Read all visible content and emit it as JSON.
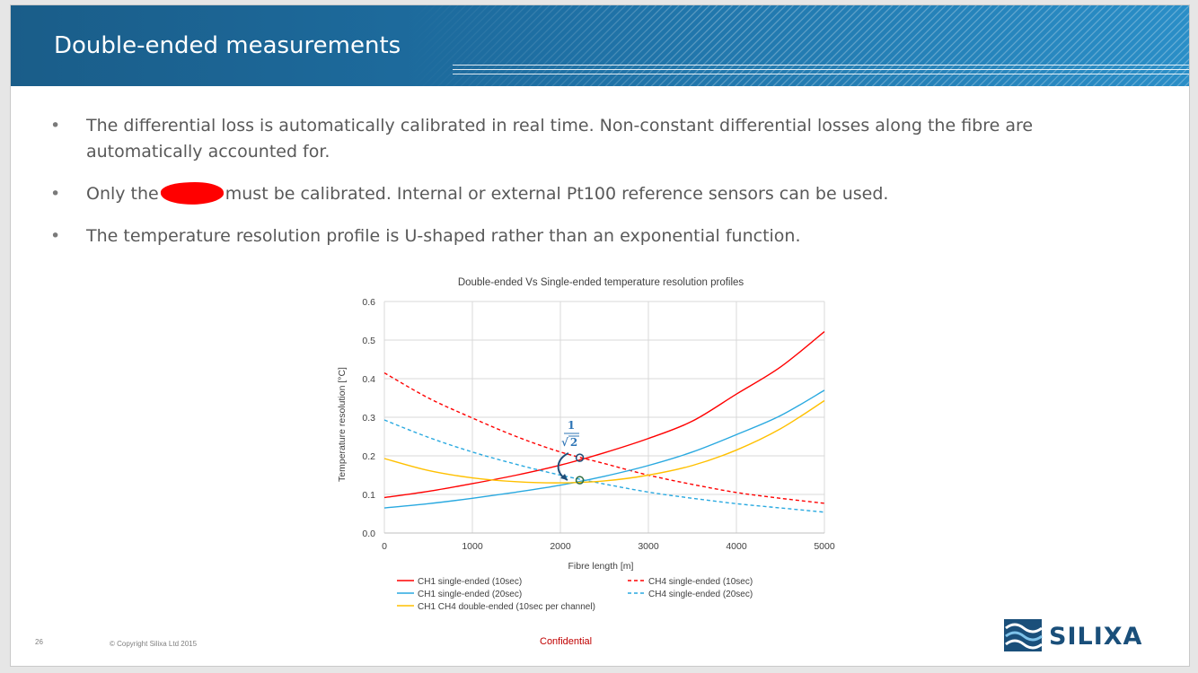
{
  "slide": {
    "title": "Double-ended measurements",
    "bullets": [
      {
        "text": "The differential loss is automatically calibrated in real time. Non-constant differential losses along the fibre are automatically accounted for."
      },
      {
        "before": "Only the",
        "after": "must be calibrated. Internal or external Pt100 reference sensors can be used."
      },
      {
        "text": "The temperature resolution profile is U-shaped rather than an exponential function."
      }
    ],
    "bullet_symbol": "•"
  },
  "footer": {
    "page_number": "26",
    "copyright": "© Copyright Silixa Ltd  2015",
    "confidential": "Confidential",
    "logo_text": "SILIXA"
  },
  "chart_data": {
    "type": "line",
    "title": "Double-ended Vs Single-ended temperature resolution profiles",
    "xlabel": "Fibre length [m]",
    "ylabel": "Temperature resolution [°C]",
    "xlim": [
      0,
      5000
    ],
    "ylim": [
      0,
      0.6
    ],
    "xticks": [
      0,
      1000,
      2000,
      3000,
      4000,
      5000
    ],
    "yticks": [
      "0.0",
      "0.1",
      "0.2",
      "0.3",
      "0.4",
      "0.5",
      "0.6"
    ],
    "grid": true,
    "legend_position": "bottom",
    "annotation": {
      "numerator": "1",
      "denominator": "2",
      "symbol": "√"
    },
    "x": [
      0,
      500,
      1000,
      1500,
      2000,
      2500,
      3000,
      3500,
      4000,
      4500,
      5000
    ],
    "series": [
      {
        "name": "CH1 single-ended (10sec)",
        "color": "#ff0000",
        "dash": "solid",
        "values": [
          0.092,
          0.108,
          0.128,
          0.15,
          0.176,
          0.208,
          0.245,
          0.29,
          0.36,
          0.43,
          0.522
        ]
      },
      {
        "name": "CH4 single-ended (10sec)",
        "color": "#ff0000",
        "dash": "dashed",
        "values": [
          0.415,
          0.35,
          0.298,
          0.25,
          0.21,
          0.18,
          0.15,
          0.126,
          0.105,
          0.09,
          0.077
        ]
      },
      {
        "name": "CH1 single-ended (20sec)",
        "color": "#29a9e0",
        "dash": "solid",
        "values": [
          0.065,
          0.076,
          0.09,
          0.106,
          0.124,
          0.147,
          0.175,
          0.21,
          0.255,
          0.304,
          0.37
        ]
      },
      {
        "name": "CH4 single-ended (20sec)",
        "color": "#29a9e0",
        "dash": "dashed",
        "values": [
          0.293,
          0.248,
          0.21,
          0.178,
          0.15,
          0.127,
          0.106,
          0.09,
          0.076,
          0.065,
          0.054
        ]
      },
      {
        "name": "CH1 CH4 double-ended (10sec per channel)",
        "color": "#ffc000",
        "dash": "solid",
        "values": [
          0.193,
          0.162,
          0.143,
          0.133,
          0.13,
          0.135,
          0.15,
          0.175,
          0.215,
          0.27,
          0.343
        ]
      }
    ],
    "markers": [
      {
        "x": 2220,
        "y": 0.195,
        "color": "#1f4e79"
      },
      {
        "x": 2220,
        "y": 0.137,
        "color": "#2e6b3f"
      }
    ]
  }
}
